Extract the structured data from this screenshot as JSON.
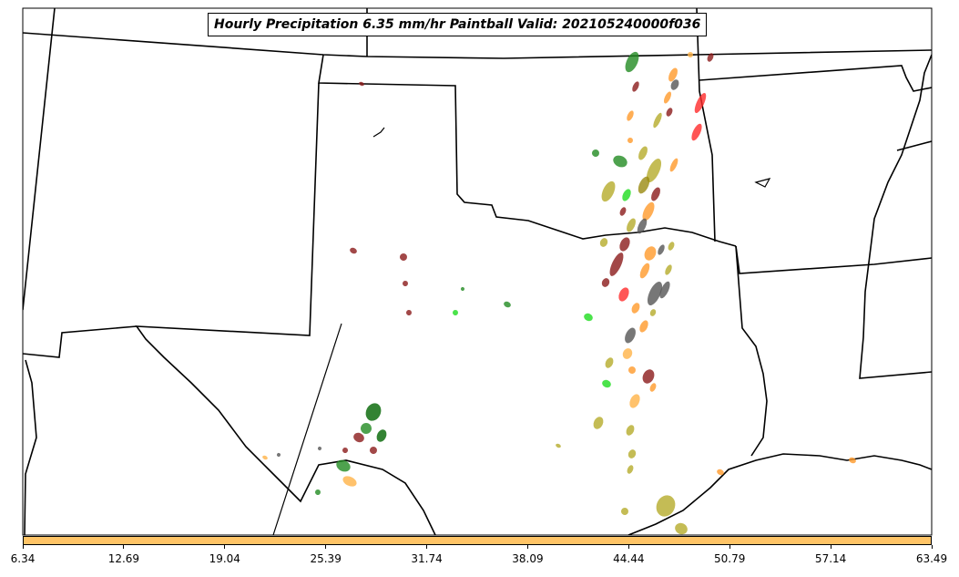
{
  "title": "Hourly Precipitation 6.35 mm/hr Paintball Valid: 202105240000f036",
  "colorbar": {
    "fill_color": "#ffc466",
    "tick_labels": [
      "6.34",
      "12.69",
      "19.04",
      "25.39",
      "31.74",
      "38.09",
      "44.44",
      "50.79",
      "57.14",
      "63.49"
    ]
  },
  "member_colors": [
    "#228b22",
    "#8b1a1a",
    "#ff9a2a",
    "#b5ab2a",
    "#555555",
    "#ff2a2a",
    "#1edc1e",
    "#9a8a10",
    "#006400",
    "#ffb347"
  ]
}
